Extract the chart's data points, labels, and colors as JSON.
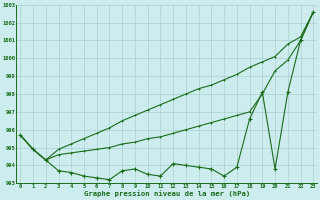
{
  "x": [
    0,
    1,
    2,
    3,
    4,
    5,
    6,
    7,
    8,
    9,
    10,
    11,
    12,
    13,
    14,
    15,
    16,
    17,
    18,
    19,
    20,
    21,
    22,
    23
  ],
  "line_top": [
    995.7,
    994.9,
    994.3,
    994.9,
    995.2,
    995.5,
    995.8,
    996.1,
    996.5,
    996.8,
    997.1,
    997.4,
    997.7,
    998.0,
    998.3,
    998.5,
    998.8,
    999.1,
    999.5,
    999.8,
    1000.1,
    1000.8,
    1001.2,
    1002.6
  ],
  "line_mid": [
    995.7,
    994.9,
    994.3,
    994.6,
    994.7,
    994.8,
    994.9,
    995.0,
    995.2,
    995.3,
    995.5,
    995.6,
    995.8,
    996.0,
    996.2,
    996.4,
    996.6,
    996.8,
    997.0,
    998.0,
    999.3,
    999.9,
    1001.0,
    1002.6
  ],
  "line_bot": [
    995.7,
    994.9,
    994.3,
    993.7,
    993.6,
    993.4,
    993.3,
    993.2,
    993.7,
    993.8,
    993.5,
    993.4,
    994.1,
    994.0,
    993.9,
    993.8,
    993.4,
    993.9,
    996.6,
    998.1,
    993.8,
    998.1,
    1001.0,
    1002.6
  ],
  "ylim": [
    993,
    1003
  ],
  "yticks": [
    993,
    994,
    995,
    996,
    997,
    998,
    999,
    1000,
    1001,
    1002,
    1003
  ],
  "xticks": [
    0,
    1,
    2,
    3,
    4,
    5,
    6,
    7,
    8,
    9,
    10,
    11,
    12,
    13,
    14,
    15,
    16,
    17,
    18,
    19,
    20,
    21,
    22,
    23
  ],
  "line_color": "#1a6b1a",
  "bg_color": "#cdeced",
  "grid_color": "#aacfcf",
  "xlabel": "Graphe pression niveau de la mer (hPa)"
}
